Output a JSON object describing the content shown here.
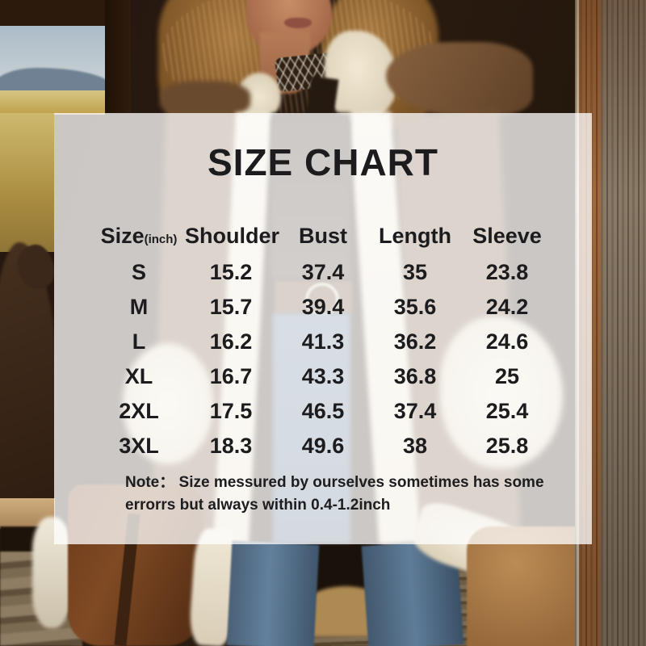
{
  "title": "SIZE CHART",
  "table": {
    "headers": {
      "size": "Size",
      "size_unit": "(inch)",
      "shoulder": "Shoulder",
      "bust": "Bust",
      "length": "Length",
      "sleeve": "Sleeve"
    },
    "rows": [
      {
        "size": "S",
        "shoulder": "15.2",
        "bust": "37.4",
        "length": "35",
        "sleeve": "23.8"
      },
      {
        "size": "M",
        "shoulder": "15.7",
        "bust": "39.4",
        "length": "35.6",
        "sleeve": "24.2"
      },
      {
        "size": "L",
        "shoulder": "16.2",
        "bust": "41.3",
        "length": "36.2",
        "sleeve": "24.6"
      },
      {
        "size": "XL",
        "shoulder": "16.7",
        "bust": "43.3",
        "length": "36.8",
        "sleeve": "25"
      },
      {
        "size": "2XL",
        "shoulder": "17.5",
        "bust": "46.5",
        "length": "37.4",
        "sleeve": "25.4"
      },
      {
        "size": "3XL",
        "shoulder": "18.3",
        "bust": "49.6",
        "length": "38",
        "sleeve": "25.8"
      }
    ]
  },
  "note": {
    "label": "Note：",
    "text": "Size messured by ourselves sometimes has some errorrs but always within 0.4-1.2inch"
  },
  "colors": {
    "panel_bg": "rgba(255,255,255,0.76)",
    "text": "#1c1c1e",
    "coat_brown": "#6f4e31",
    "fur_cream": "#efe8d6",
    "denim_blue": "#5d7692",
    "barn_wood": "#8a7b69"
  }
}
